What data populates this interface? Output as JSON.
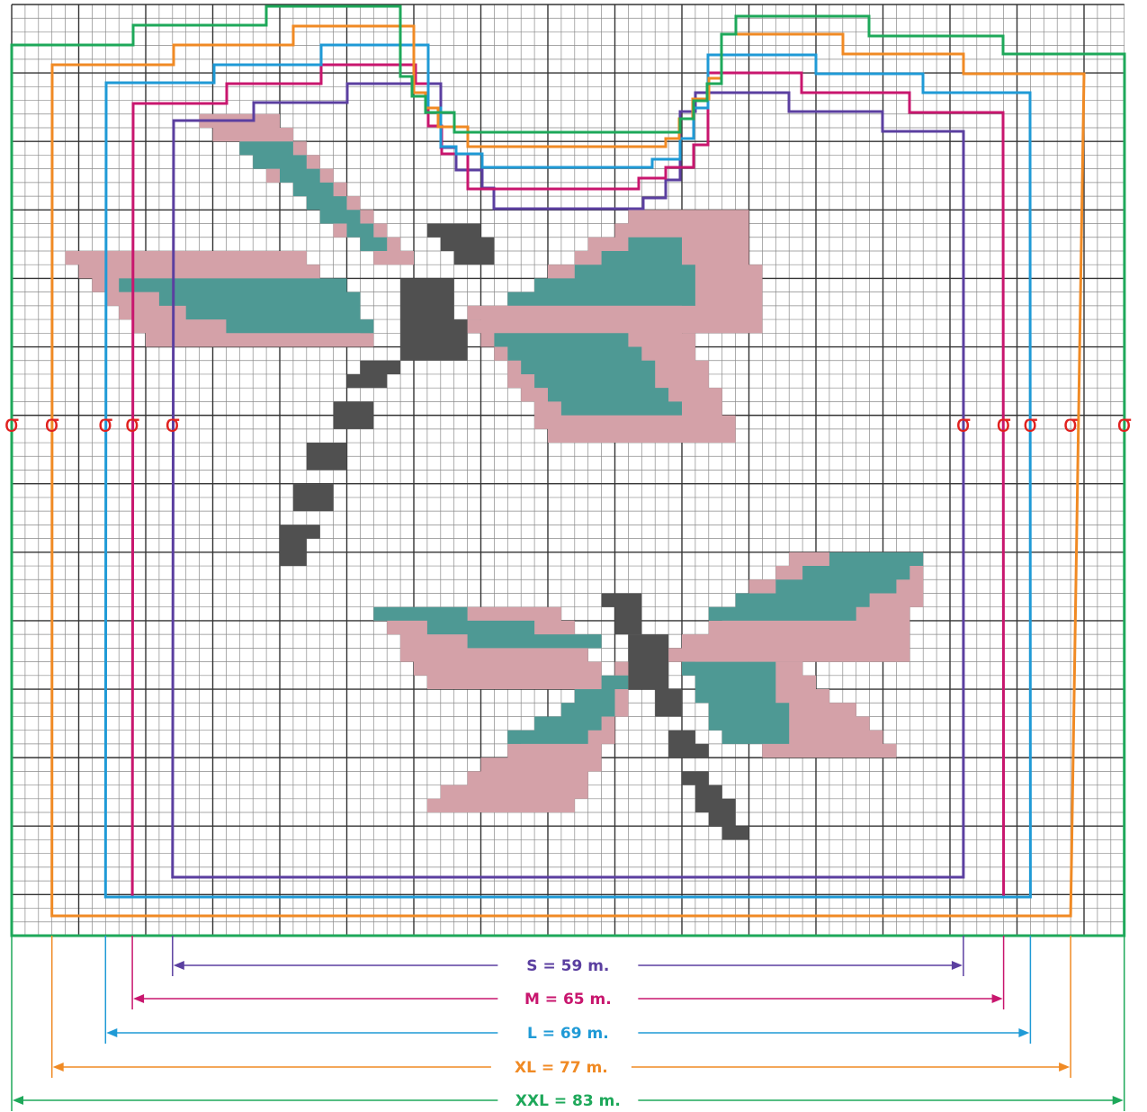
{
  "diagram": {
    "grid": {
      "cols": 83,
      "rows": 68,
      "minor_color": "#8a8a8a",
      "major_color": "#333333"
    },
    "motif_colors": {
      "pink": "#d4a1a8",
      "teal": "#4e9994",
      "dark": "#505050"
    },
    "marker_symbol": "σ",
    "marker_color": "#e0211f",
    "sizes": [
      {
        "id": "s",
        "label": "S = 59 m.",
        "stitches": 59,
        "color": "#5b3fa0"
      },
      {
        "id": "m",
        "label": "M = 65 m.",
        "stitches": 65,
        "color": "#c8166e"
      },
      {
        "id": "l",
        "label": "L = 69 m.",
        "stitches": 69,
        "color": "#1f9ad6"
      },
      {
        "id": "xl",
        "label": "XL = 77 m.",
        "stitches": 77,
        "color": "#f08a24"
      },
      {
        "id": "xxl",
        "label": "XXL = 83 m.",
        "stitches": 83,
        "color": "#1ea85a"
      }
    ]
  }
}
